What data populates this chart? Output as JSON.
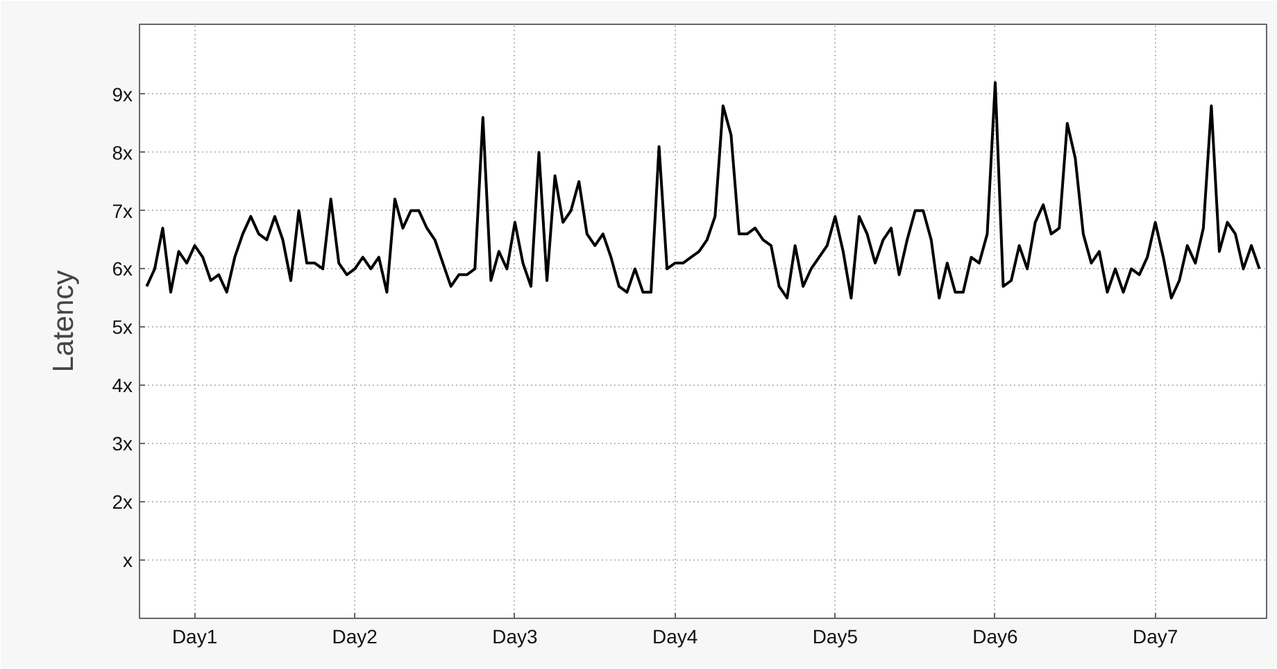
{
  "chart_data": {
    "type": "line",
    "ylabel": "Latency",
    "ylim": [
      0,
      10.2
    ],
    "categories": [
      null,
      null,
      null,
      null,
      null,
      null,
      "Day1",
      null,
      null,
      null,
      null,
      null,
      null,
      null,
      null,
      null,
      null,
      null,
      null,
      null,
      null,
      null,
      null,
      null,
      null,
      null,
      "Day2",
      null,
      null,
      null,
      null,
      null,
      null,
      null,
      null,
      null,
      null,
      null,
      null,
      null,
      null,
      null,
      null,
      null,
      null,
      null,
      "Day3",
      null,
      null,
      null,
      null,
      null,
      null,
      null,
      null,
      null,
      null,
      null,
      null,
      null,
      null,
      null,
      null,
      null,
      null,
      null,
      "Day4",
      null,
      null,
      null,
      null,
      null,
      null,
      null,
      null,
      null,
      null,
      null,
      null,
      null,
      null,
      null,
      null,
      null,
      null,
      null,
      "Day5",
      null,
      null,
      null,
      null,
      null,
      null,
      null,
      null,
      null,
      null,
      null,
      null,
      null,
      null,
      null,
      null,
      null,
      null,
      null,
      "Day6",
      null,
      null,
      null,
      null,
      null,
      null,
      null,
      null,
      null,
      null,
      null,
      null,
      null,
      null,
      null,
      null,
      null,
      null,
      null,
      "Day7",
      null,
      null,
      null,
      null,
      null,
      null,
      null,
      null,
      null,
      null,
      null,
      null,
      null
    ],
    "yticks": [
      {
        "value": 1,
        "label": "x"
      },
      {
        "value": 2,
        "label": "2x"
      },
      {
        "value": 3,
        "label": "3x"
      },
      {
        "value": 4,
        "label": "4x"
      },
      {
        "value": 5,
        "label": "5x"
      },
      {
        "value": 6,
        "label": "6x"
      },
      {
        "value": 7,
        "label": "7x"
      },
      {
        "value": 8,
        "label": "8x"
      },
      {
        "value": 9,
        "label": "9x"
      }
    ],
    "grid": true,
    "line_style": "solid",
    "marker": "none",
    "series": [
      {
        "color": "#000000",
        "values": [
          5.7,
          6.0,
          6.7,
          5.6,
          6.3,
          6.1,
          6.4,
          6.2,
          5.8,
          5.9,
          5.6,
          6.2,
          6.6,
          6.9,
          6.6,
          6.5,
          6.9,
          6.5,
          5.8,
          7.0,
          6.1,
          6.1,
          6.0,
          7.2,
          6.1,
          5.9,
          6.0,
          6.2,
          6.0,
          6.2,
          5.6,
          7.2,
          6.7,
          7.0,
          7.0,
          6.7,
          6.5,
          6.1,
          5.7,
          5.9,
          5.9,
          6.0,
          8.6,
          5.8,
          6.3,
          6.0,
          6.8,
          6.1,
          5.7,
          8.0,
          5.8,
          7.6,
          6.8,
          7.0,
          7.5,
          6.6,
          6.4,
          6.6,
          6.2,
          5.7,
          5.6,
          6.0,
          5.6,
          5.6,
          8.1,
          6.0,
          6.1,
          6.1,
          6.2,
          6.3,
          6.5,
          6.9,
          8.8,
          8.3,
          6.6,
          6.6,
          6.7,
          6.5,
          6.4,
          5.7,
          5.5,
          6.4,
          5.7,
          6.0,
          6.2,
          6.4,
          6.9,
          6.3,
          5.5,
          6.9,
          6.6,
          6.1,
          6.5,
          6.7,
          5.9,
          6.5,
          7.0,
          7.0,
          6.5,
          5.5,
          6.1,
          5.6,
          5.6,
          6.2,
          6.1,
          6.6,
          9.2,
          5.7,
          5.8,
          6.4,
          6.0,
          6.8,
          7.1,
          6.6,
          6.7,
          8.5,
          7.9,
          6.6,
          6.1,
          6.3,
          5.6,
          6.0,
          5.6,
          6.0,
          5.9,
          6.2,
          6.8,
          6.2,
          5.5,
          5.8,
          6.4,
          6.1,
          6.7,
          8.8,
          6.3,
          6.8,
          6.6,
          6.0,
          6.4,
          6.0
        ]
      }
    ]
  }
}
